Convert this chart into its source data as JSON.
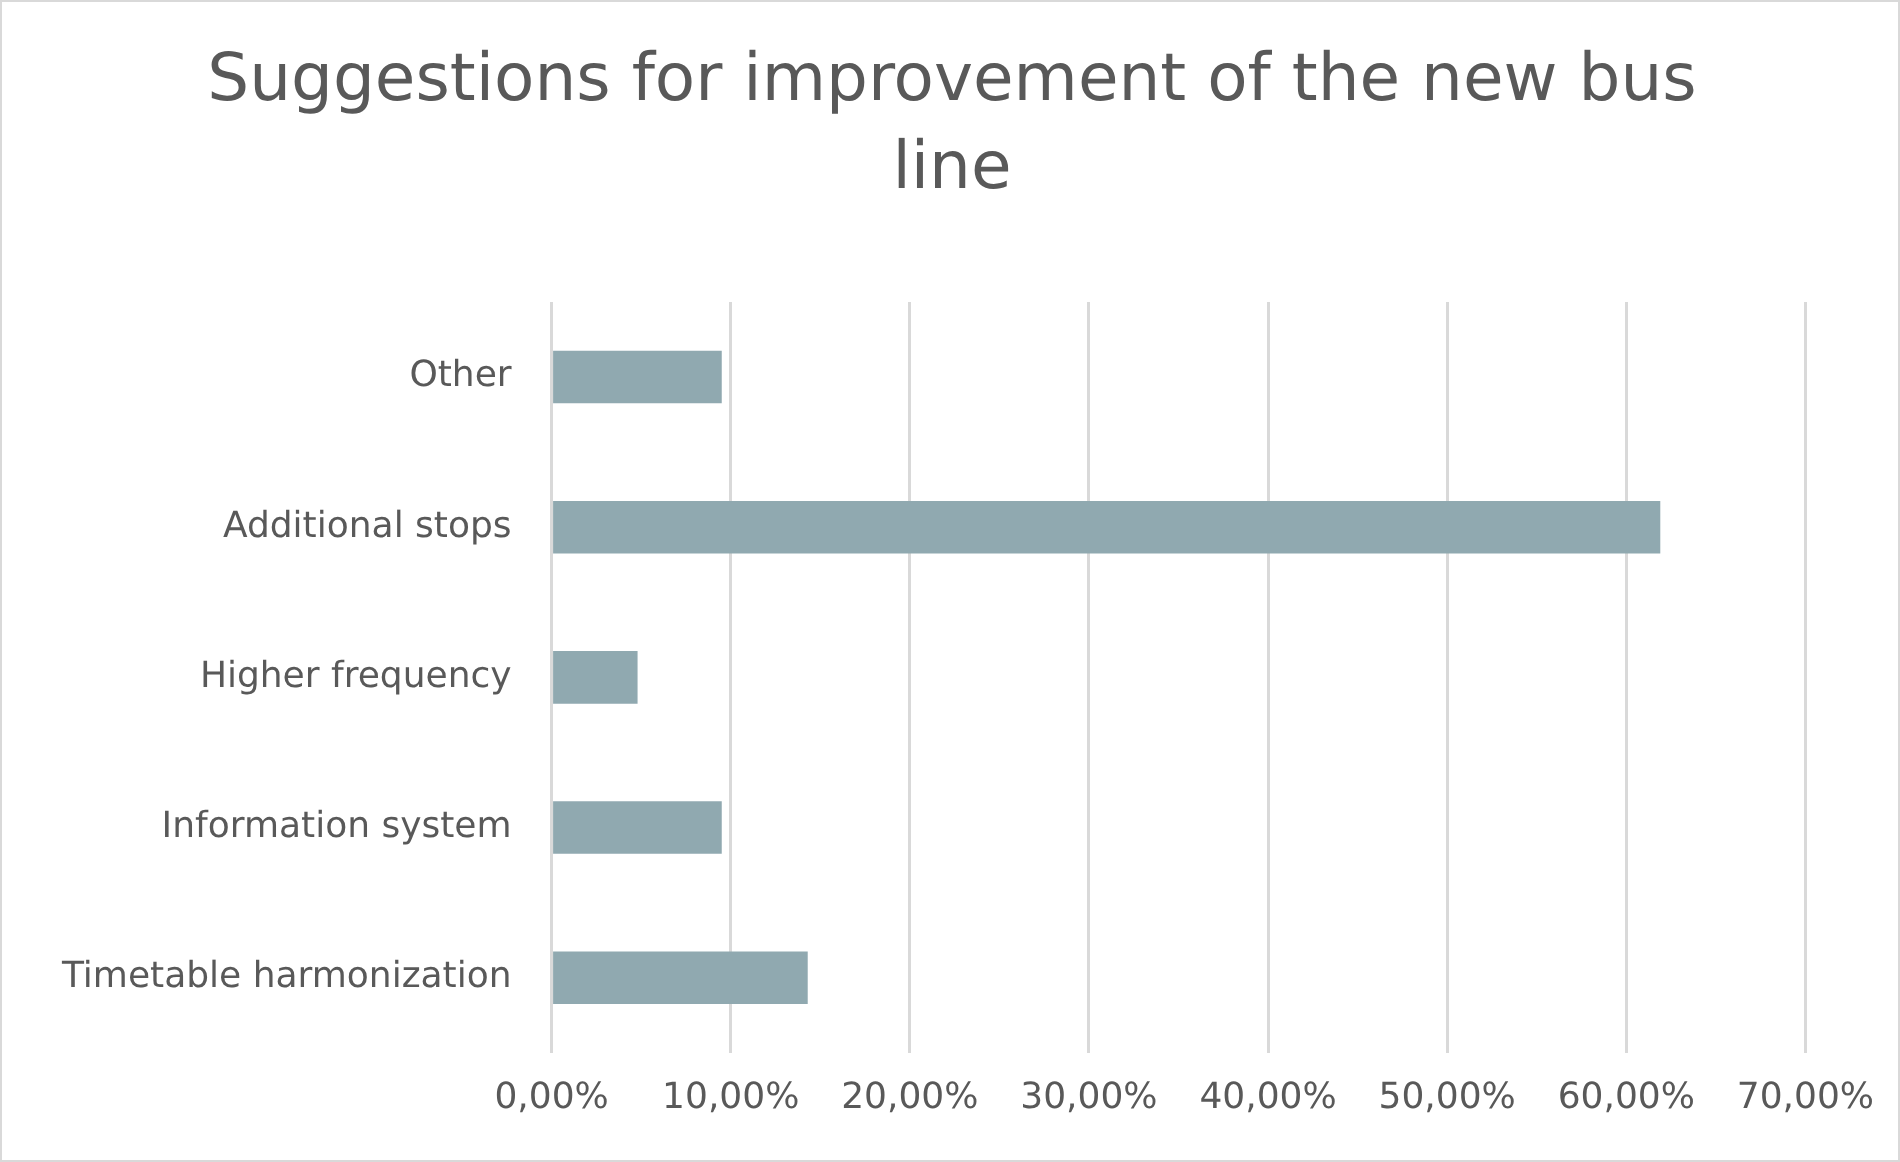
{
  "chart_data": {
    "type": "bar",
    "orientation": "horizontal",
    "title": "Suggestions for improvement of the new bus line",
    "categories": [
      "Other",
      "Additional stops",
      "Higher frequency",
      "Information system",
      "Timetable harmonization"
    ],
    "values": [
      9.5,
      61.9,
      4.8,
      9.5,
      14.3
    ],
    "color": "#90a9b0",
    "xlim": [
      0,
      70
    ],
    "xticks": [
      {
        "value": 0,
        "label": "0,00%"
      },
      {
        "value": 10,
        "label": "10,00%"
      },
      {
        "value": 20,
        "label": "20,00%"
      },
      {
        "value": 30,
        "label": "30,00%"
      },
      {
        "value": 40,
        "label": "40,00%"
      },
      {
        "value": 50,
        "label": "50,00%"
      },
      {
        "value": 60,
        "label": "60,00%"
      },
      {
        "value": 70,
        "label": "70,00%"
      }
    ],
    "grid": "x",
    "legend": false
  }
}
